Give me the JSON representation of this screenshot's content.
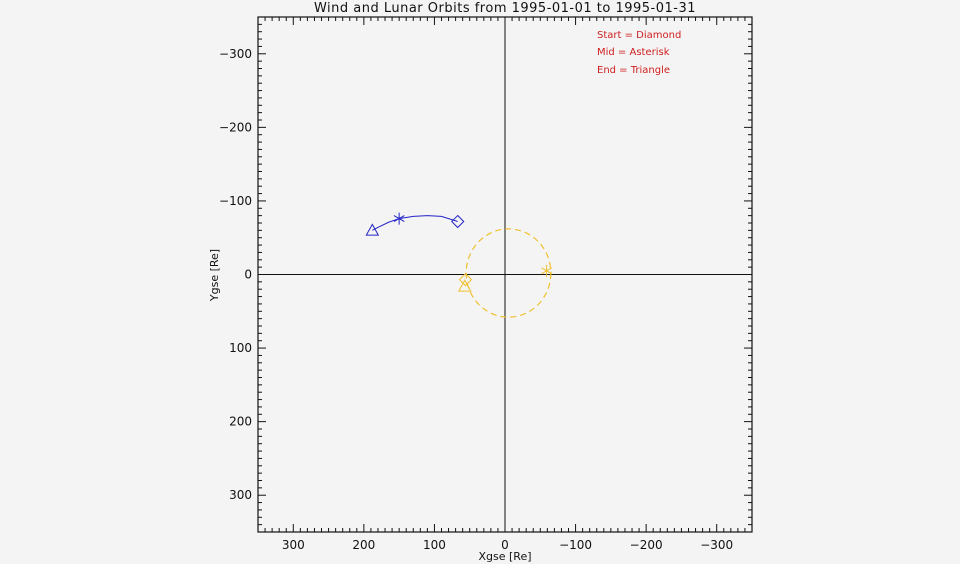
{
  "chart_data": {
    "type": "scatter",
    "title": "Wind and Lunar Orbits from 1995-01-01 to 1995-01-31",
    "xlabel": "Xgse [Re]",
    "ylabel": "Ygse [Re]",
    "xlim": [
      350,
      -350
    ],
    "ylim": [
      -350,
      350
    ],
    "x_ticks": [
      300,
      200,
      100,
      0,
      -100,
      -200,
      -300
    ],
    "x_tick_labels": [
      "300",
      "200",
      "100",
      "0",
      "−100",
      "−200",
      "−300"
    ],
    "y_ticks": [
      -300,
      -200,
      -100,
      0,
      100,
      200,
      300
    ],
    "y_tick_labels": [
      "−300",
      "−200",
      "−100",
      "0",
      "100",
      "200",
      "300"
    ],
    "grid": false,
    "legend_position": "top-right",
    "legend": [
      "Start = Diamond",
      "Mid = Asterisk",
      "End = Triangle"
    ],
    "series": [
      {
        "color": "#2323c8",
        "line_style": "solid",
        "x": [
          67,
          90,
          110,
          130,
          150,
          165,
          178,
          188
        ],
        "y": [
          -72,
          -79,
          -80,
          -79,
          -76,
          -71,
          -65,
          -60
        ],
        "start": [
          67,
          -72
        ],
        "mid": [
          150,
          -76
        ],
        "end": [
          188,
          -60
        ]
      },
      {
        "color": "#f0c030",
        "line_style": "dashed",
        "center": [
          -5,
          -2
        ],
        "radius_x": 60,
        "radius_y": 60,
        "start": [
          56,
          7
        ],
        "mid": [
          -59,
          -5
        ],
        "end": [
          57,
          16
        ]
      }
    ]
  }
}
